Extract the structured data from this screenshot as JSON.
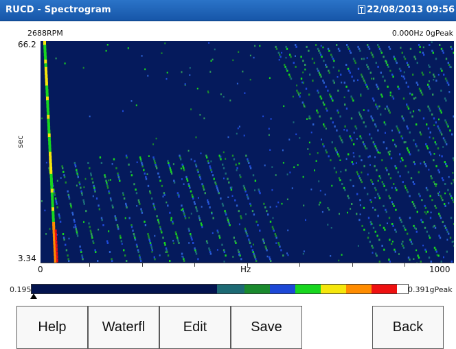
{
  "app": {
    "title": "RUCD - Spectrogram",
    "datetime": "22/08/2013 09:56"
  },
  "spectrogram": {
    "rpm": "2688RPM",
    "readout": "0.000Hz  0gPeak",
    "y_top": "66.2",
    "y_bottom": "3.34",
    "y_label": "sec",
    "x_min": "0",
    "x_label": "Hz",
    "x_max": "1000",
    "background_color": "#051a5c"
  },
  "color_scale": {
    "min_label": "0.195",
    "max_label": "0.391gPeak",
    "colors": [
      "#04144f",
      "#1d6a74",
      "#1a8a2e",
      "#1d48d6",
      "#18d620",
      "#f5e60c",
      "#ff8c00",
      "#ee1111"
    ]
  },
  "buttons": {
    "help": "Help",
    "waterfall": "Waterfl",
    "edit": "Edit",
    "save": "Save",
    "back": "Back"
  }
}
